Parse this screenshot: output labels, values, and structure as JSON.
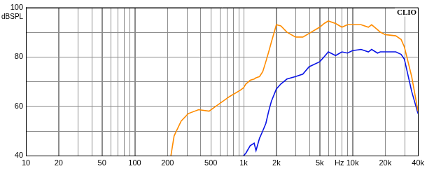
{
  "chart_data": {
    "type": "line",
    "annotation": "CLIO",
    "y_label": "dBSPL",
    "x_label": "Hz",
    "log": "x",
    "grid": true,
    "xlim": [
      10,
      40000
    ],
    "xticks": [
      10,
      20,
      50,
      100,
      200,
      500,
      {
        "value": 1000,
        "label": "1k"
      },
      {
        "value": 2000,
        "label": "2k"
      },
      {
        "value": 5000,
        "label": "5k"
      },
      {
        "value": 10000,
        "label": "10k"
      },
      {
        "value": 20000,
        "label": "20k"
      },
      {
        "value": 40000,
        "label": "40k"
      }
    ],
    "ylim": [
      40,
      100
    ],
    "yticks": [
      40,
      60,
      80,
      100
    ],
    "x": [
      215,
      230,
      267,
      310,
      386,
      482,
      556,
      748,
      935,
      1000,
      1050,
      1150,
      1250,
      1300,
      1400,
      1500,
      1600,
      1700,
      1800,
      2000,
      2200,
      2500,
      3000,
      3500,
      4000,
      5000,
      5500,
      6000,
      7000,
      8000,
      9000,
      10000,
      12000,
      14000,
      15000,
      17000,
      18000,
      20000,
      25000,
      28000,
      30000,
      35000,
      40000
    ],
    "series": [
      {
        "color": "#ff8c00",
        "values": [
          40,
          48,
          54,
          57,
          58.6,
          58,
          60,
          64,
          66.5,
          67.5,
          69,
          70.5,
          71,
          71.5,
          72,
          74,
          78,
          82,
          86,
          93,
          92.5,
          90,
          88,
          88,
          89.5,
          92,
          93.5,
          94.5,
          93.5,
          92,
          93,
          93,
          93,
          92,
          93,
          91,
          90,
          89,
          88.5,
          87,
          84,
          72,
          58
        ]
      },
      {
        "color": "#0a14e6",
        "values": [
          null,
          null,
          null,
          null,
          null,
          null,
          null,
          null,
          null,
          40,
          41,
          44,
          45,
          42,
          47,
          50,
          53,
          58,
          62,
          67,
          69,
          71,
          72,
          73,
          76,
          78,
          80,
          82,
          80.5,
          82,
          81.5,
          82.5,
          83,
          82,
          83,
          81.5,
          82,
          82,
          82,
          81,
          79,
          66,
          57
        ]
      }
    ]
  }
}
